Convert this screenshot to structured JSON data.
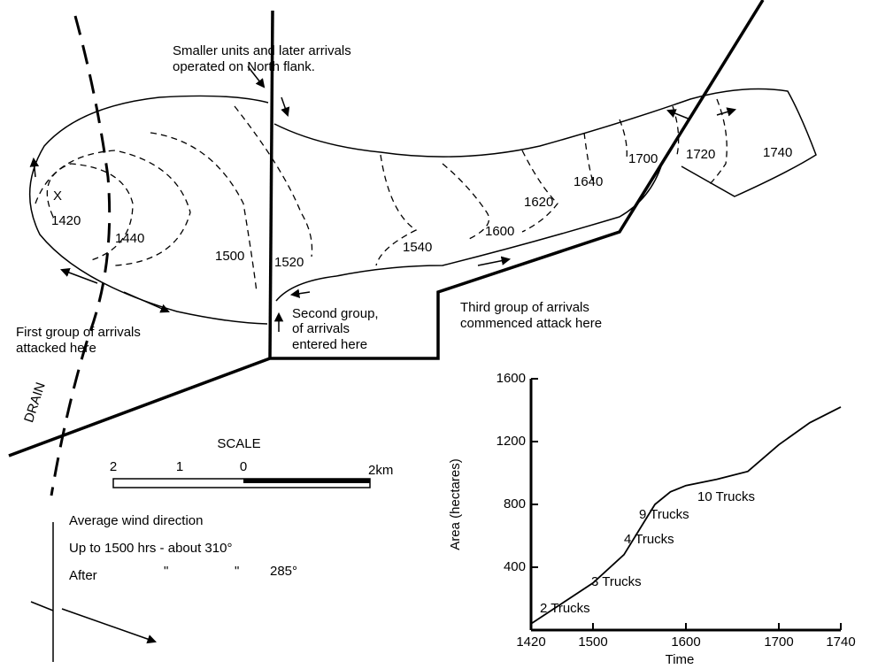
{
  "map": {
    "north_note": [
      "Smaller units and later arrivals",
      "operated on North flank."
    ],
    "start_mark": "X",
    "contours": [
      "1420",
      "1440",
      "1500",
      "1520",
      "1540",
      "1600",
      "1620",
      "1640",
      "1700",
      "1720",
      "1740"
    ],
    "second_group": [
      "Second group,",
      "of arrivals",
      "entered here"
    ],
    "third_group": [
      "Third group of arrivals",
      "commenced attack here"
    ],
    "first_group": [
      "First group of arrivals",
      "attacked here"
    ],
    "drain": "DRAIN",
    "scale": {
      "title": "SCALE",
      "ticks": [
        "2",
        "1",
        "0",
        "2km"
      ]
    },
    "wind": {
      "title": "Average wind direction",
      "line1": "Up to 1500 hrs - about 310°",
      "line2": [
        "After",
        "\"",
        "\"",
        "285°"
      ]
    }
  },
  "chart_data": {
    "type": "line",
    "color": "#000000",
    "x_label": "Time",
    "y_label": "Area (hectares)",
    "x": [
      1420,
      1440,
      1500,
      1520,
      1530,
      1540,
      1550,
      1600,
      1620,
      1640,
      1700,
      1720,
      1740
    ],
    "values": [
      40,
      170,
      300,
      480,
      640,
      800,
      880,
      920,
      960,
      1010,
      1180,
      1320,
      1420
    ],
    "xlim": [
      1420,
      1740
    ],
    "xticks": [
      1420,
      1500,
      1600,
      1700,
      1740
    ],
    "ylim": [
      0,
      1600
    ],
    "yticks": [
      400,
      800,
      1200,
      1600
    ],
    "annotations": [
      "2 Trucks",
      "3 Trucks",
      "4 Trucks",
      "9 Trucks",
      "10 Trucks"
    ]
  }
}
